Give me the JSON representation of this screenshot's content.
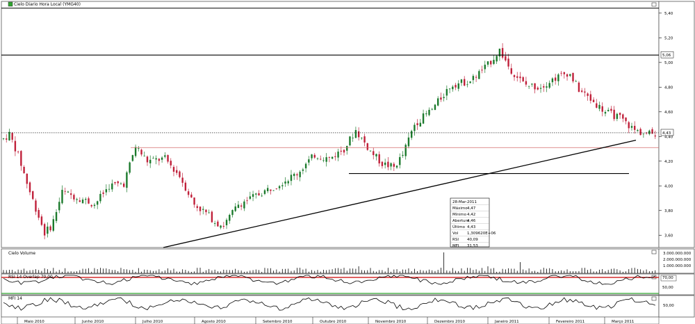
{
  "app": {
    "title": "Cielo Diario Hora Local (YMG40)",
    "volume_title": "Cielo Volume",
    "rsi_title": "RSI 14 Overlap 70,00",
    "mfi_title": "MFI 14"
  },
  "chart_data": {
    "type": "candlestick",
    "title": "Cielo Diario Hora Local (YMG40)",
    "ylim": [
      3.5,
      5.45
    ],
    "y_ticks": [
      "5,40",
      "5,20",
      "5,00",
      "4,80",
      "4,60",
      "4,40",
      "4,20",
      "4,00",
      "3,80",
      "3,60"
    ],
    "levels": {
      "resistance": 5.06,
      "last_price": 4.43,
      "support_red": 4.31,
      "support_black": 4.1,
      "trendline_start": {
        "x": "Julho 2010 start",
        "y": 3.5
      },
      "trendline_end": {
        "x": "Março 2011 end",
        "y": 4.37
      }
    },
    "price_labels": {
      "resistance": "5,06",
      "last": "4,43"
    },
    "months": [
      "Maio 2010",
      "Junho 2010",
      "Julho 2010",
      "Agosto 2010",
      "Setembro 2010",
      "Outubro 2010",
      "Novembro 2010",
      "Dezembro 2010",
      "Janeiro 2011",
      "Fevereiro 2011",
      "Março 2011"
    ],
    "info_box": {
      "date": "28-Mar-2011",
      "rows": [
        {
          "k": "Máximo",
          "v": "4,47"
        },
        {
          "k": "Mínimo",
          "v": "4,42"
        },
        {
          "k": "Abertura",
          "v": "4,46"
        },
        {
          "k": "Último",
          "v": "4,43"
        },
        {
          "k": "Vol",
          "v": "1,309620E+06"
        },
        {
          "k": "RSI",
          "v": "40,09"
        },
        {
          "k": "MFI",
          "v": "31,53"
        }
      ]
    },
    "volume_ticks": [
      "3.000.000.000",
      "2.000.000.000",
      "1.000.000.000"
    ],
    "rsi_ticks": [
      "70,00",
      "50,00"
    ],
    "mfi_ticks": [
      "50,00"
    ],
    "colors": {
      "up": "#1b7a2c",
      "down": "#c0203a",
      "line": "#000000",
      "red": "#cc0000",
      "green": "#2ea52e"
    }
  }
}
